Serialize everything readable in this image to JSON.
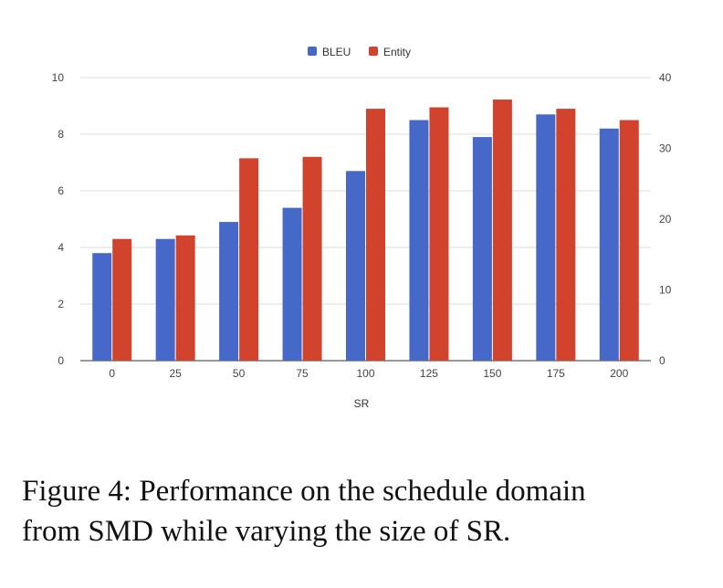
{
  "chart_data": {
    "type": "bar",
    "categories": [
      "0",
      "25",
      "50",
      "75",
      "100",
      "125",
      "150",
      "175",
      "200"
    ],
    "series": [
      {
        "name": "BLEU",
        "axis": "left",
        "color": "#4668c8",
        "values": [
          3.8,
          4.3,
          4.9,
          5.4,
          6.7,
          8.5,
          7.9,
          8.7,
          8.2
        ]
      },
      {
        "name": "Entity",
        "axis": "right",
        "color": "#d1432d",
        "values": [
          17.2,
          17.7,
          28.6,
          28.8,
          35.6,
          35.8,
          36.9,
          35.6,
          34.0
        ]
      }
    ],
    "title": "",
    "xlabel": "SR",
    "ylabel": "",
    "y_left_ticks": [
      "0",
      "2",
      "4",
      "6",
      "8",
      "10"
    ],
    "y_right_ticks": [
      "0",
      "10",
      "20",
      "30",
      "40"
    ],
    "ylim_left": [
      0,
      10
    ],
    "ylim_right": [
      0,
      40
    ],
    "legend_position": "top-center",
    "grid": true
  },
  "caption": {
    "line1": "Figure 4:  Performance on the schedule domain",
    "line2": "from SMD while varying the size of SR."
  }
}
